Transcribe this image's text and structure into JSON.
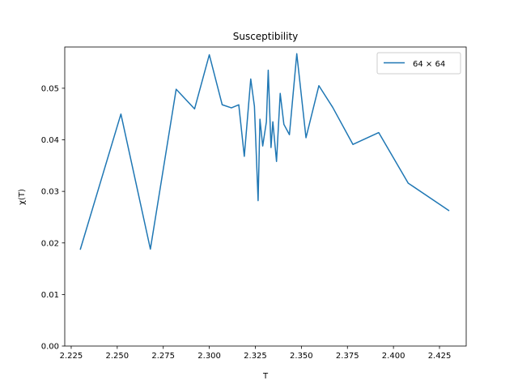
{
  "chart_data": {
    "type": "line",
    "title": "Susceptibility",
    "xlabel": "T",
    "ylabel": "χ(T)",
    "xlim": [
      2.2215,
      2.4395
    ],
    "ylim": [
      0.0,
      0.058
    ],
    "xticks": [
      2.225,
      2.25,
      2.275,
      2.3,
      2.325,
      2.35,
      2.375,
      2.4,
      2.425
    ],
    "xtick_labels": [
      "2.225",
      "2.250",
      "2.275",
      "2.300",
      "2.325",
      "2.350",
      "2.375",
      "2.400",
      "2.425"
    ],
    "yticks": [
      0.0,
      0.01,
      0.02,
      0.03,
      0.04,
      0.05
    ],
    "ytick_labels": [
      "0.00",
      "0.01",
      "0.02",
      "0.03",
      "0.04",
      "0.05"
    ],
    "grid": false,
    "legend_position": "top-right",
    "series": [
      {
        "name": "64 × 64",
        "color": "#1f77b4",
        "x": [
          2.23,
          2.252,
          2.268,
          2.282,
          2.292,
          2.3,
          2.307,
          2.312,
          2.316,
          2.319,
          2.3225,
          2.3245,
          2.3265,
          2.3275,
          2.329,
          2.331,
          2.332,
          2.3335,
          2.3345,
          2.3365,
          2.3385,
          2.3405,
          2.3435,
          2.3475,
          2.3525,
          2.3595,
          2.367,
          2.378,
          2.392,
          2.408,
          2.43
        ],
        "values": [
          0.0188,
          0.045,
          0.0188,
          0.0498,
          0.046,
          0.0565,
          0.0468,
          0.0462,
          0.0468,
          0.0368,
          0.0518,
          0.0465,
          0.0282,
          0.044,
          0.0388,
          0.0435,
          0.0535,
          0.0385,
          0.0435,
          0.0358,
          0.049,
          0.043,
          0.041,
          0.0567,
          0.0404,
          0.0505,
          0.0463,
          0.0391,
          0.0414,
          0.0316,
          0.0263
        ]
      }
    ]
  }
}
